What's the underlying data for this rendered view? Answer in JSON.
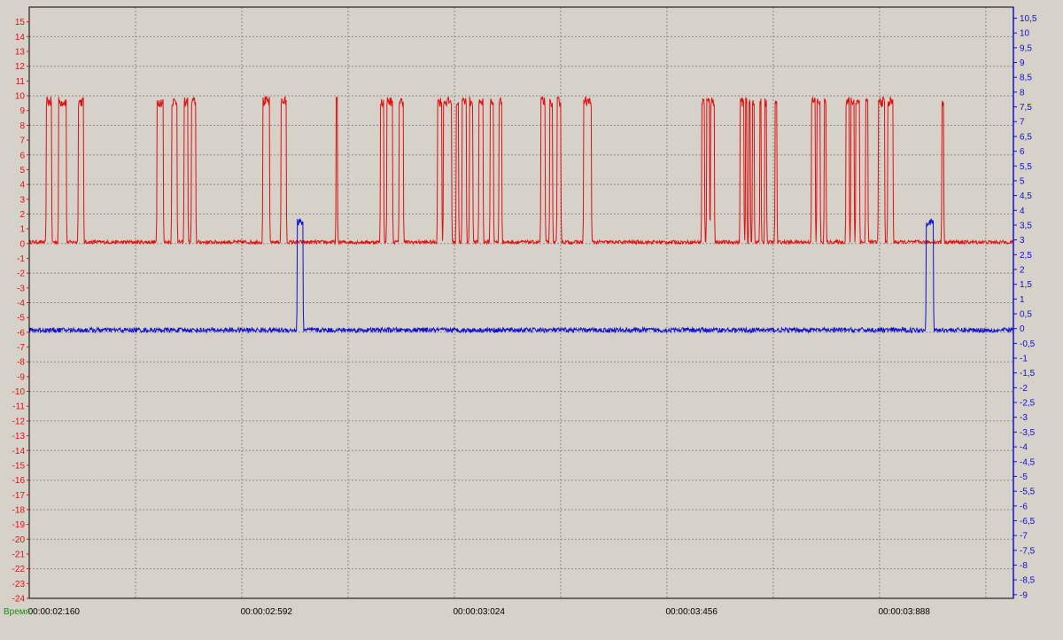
{
  "colors": {
    "background": "#d6d1c9",
    "plot_border": "#000000",
    "grid": "#8c8c8c",
    "left_axis": "#e01010",
    "right_axis": "#1010d0",
    "x_label": "#1a8a1a"
  },
  "chart_data": {
    "type": "line",
    "title": "",
    "xlabel": "Время",
    "x_tick_labels": [
      "00:00:02:160",
      "00:00:02:592",
      "00:00:03:024",
      "00:00:03:456",
      "00:00:03:888"
    ],
    "xlim_ms": [
      2110,
      4110
    ],
    "grid": true,
    "y_left": {
      "ylim": [
        -24,
        16
      ],
      "ticks": [
        15,
        14,
        13,
        12,
        11,
        10,
        9,
        8,
        7,
        6,
        5,
        4,
        3,
        2,
        1,
        0,
        -1,
        -2,
        -3,
        -4,
        -5,
        -6,
        -7,
        -8,
        -9,
        -10,
        -11,
        -12,
        -13,
        -14,
        -15,
        -16,
        -17,
        -18,
        -19,
        -20,
        -21,
        -22,
        -23,
        -24
      ]
    },
    "y_right": {
      "ylim": [
        -9.125,
        10.875
      ],
      "ticks": [
        "10,5",
        "10",
        "9,5",
        "9",
        "8,5",
        "8",
        "7,5",
        "7",
        "6,5",
        "6",
        "5,5",
        "5",
        "4,5",
        "4",
        "3,5",
        "3",
        "2,5",
        "2",
        "1,5",
        "1",
        "0,5",
        "0",
        "-0,5",
        "-1",
        "-1,5",
        "-2",
        "-2,5",
        "-3",
        "-3,5",
        "-4",
        "-4,5",
        "-5",
        "-5,5",
        "-6",
        "-6,5",
        "-7",
        "-7,5",
        "-8",
        "-8,5",
        "-9"
      ]
    },
    "series": [
      {
        "axis": "left",
        "color": "#e01010",
        "baseline": 0.1,
        "pulse_level": 9.6,
        "pulses_ms": [
          [
            2145,
            2155
          ],
          [
            2170,
            2185
          ],
          [
            2210,
            2220
          ],
          [
            2370,
            2382
          ],
          [
            2400,
            2410
          ],
          [
            2425,
            2432
          ],
          [
            2440,
            2448
          ],
          [
            2585,
            2598
          ],
          [
            2622,
            2632
          ],
          [
            2734,
            2736
          ],
          [
            2824,
            2830
          ],
          [
            2837,
            2848
          ],
          [
            2862,
            2870
          ],
          [
            2940,
            2948
          ],
          [
            2952,
            2968
          ],
          [
            2978,
            2982
          ],
          [
            2990,
            2998
          ],
          [
            3005,
            3011
          ],
          [
            3024,
            3032
          ],
          [
            3047,
            3053
          ],
          [
            3065,
            3070
          ],
          [
            3150,
            3158
          ],
          [
            3168,
            3173
          ],
          [
            3183,
            3190
          ],
          [
            3237,
            3252
          ],
          [
            3477,
            3482
          ],
          [
            3487,
            3492
          ],
          [
            3495,
            3502
          ],
          [
            3555,
            3562
          ],
          [
            3566,
            3568
          ],
          [
            3573,
            3575
          ],
          [
            3580,
            3583
          ],
          [
            3595,
            3597
          ],
          [
            3605,
            3608
          ],
          [
            3626,
            3629
          ],
          [
            3700,
            3707
          ],
          [
            3711,
            3717
          ],
          [
            3726,
            3729
          ],
          [
            3770,
            3776
          ],
          [
            3780,
            3786
          ],
          [
            3790,
            3797
          ],
          [
            3810,
            3814
          ],
          [
            3836,
            3848
          ],
          [
            3855,
            3865
          ],
          [
            3965,
            3968
          ]
        ]
      },
      {
        "axis": "right",
        "color": "#1010d0",
        "baseline": -0.05,
        "pulse_level": 3.6,
        "pulses_ms": [
          [
            2655,
            2666
          ],
          [
            3933,
            3947
          ]
        ]
      }
    ]
  }
}
